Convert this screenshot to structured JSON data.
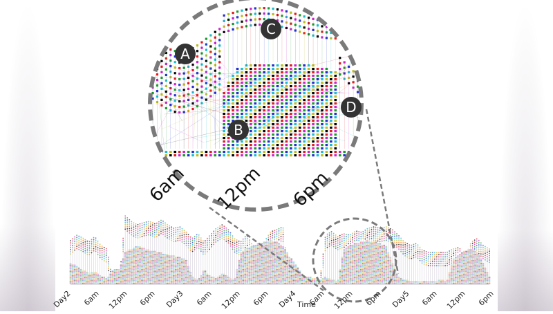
{
  "chart_data": {
    "type": "scatter",
    "subtype": "stacked-marker timeline with magnified inset",
    "title": "",
    "xlabel": "Time",
    "ylabel": "",
    "x_ticks": [
      "Day2",
      "6am",
      "12pm",
      "6pm",
      "Day3",
      "6am",
      "12pm",
      "6pm",
      "Day4",
      "6am",
      "12pm",
      "6pm",
      "Day5",
      "6am",
      "12pm",
      "6pm"
    ],
    "grid": false,
    "legend": null,
    "series_description": "Many colored marker series (one per entity) stacked vertically per time step, connected by thin colored lines",
    "marker_colors": [
      "#000000",
      "#e41a1c",
      "#cc33cc",
      "#2ca02c",
      "#1f3fcf",
      "#17becf",
      "#bcbd22",
      "#ff7f0e"
    ],
    "profile": {
      "description": "Approximate top envelope of the marker stacks, normalized 0-1 (1 = tallest), sampled evenly across Day2 -> 6pm Day5",
      "upper_band": [
        0.62,
        0.7,
        0.66,
        0.6,
        0.68,
        0.55,
        0.5,
        0.0,
        0.0,
        0.98,
        0.9,
        0.85,
        0.88,
        0.9,
        0.86,
        0.92,
        0.85,
        0.8,
        0.82,
        0.75,
        0.65,
        0.72,
        0.6,
        0.7,
        0.8,
        0.85,
        0.78,
        0.65,
        0.6,
        0.7,
        0.55,
        0.5,
        0.62,
        0.75,
        0.78,
        0.82,
        0.0,
        0.0,
        0.0,
        0.0,
        0.0,
        0.0,
        0.7,
        0.75,
        0.68,
        0.72,
        0.7,
        0.76,
        0.74,
        0.8,
        0.82,
        0.8,
        0.82,
        0.78,
        0.7,
        0.6,
        0.55,
        0.58,
        0.48,
        0.45,
        0.45,
        0.45,
        0.45,
        0.5,
        0.52,
        0.4,
        0.6,
        0.65,
        0.55,
        0.5
      ],
      "lower_block": [
        0.3,
        0.25,
        0.2,
        0.15,
        0.18,
        0.1,
        0.08,
        0.2,
        0.2,
        0.45,
        0.5,
        0.55,
        0.52,
        0.48,
        0.46,
        0.44,
        0.42,
        0.4,
        0.38,
        0.35,
        0.1,
        0.05,
        0.2,
        0.1,
        0.08,
        0.15,
        0.1,
        0.05,
        0.45,
        0.5,
        0.55,
        0.58,
        0.6,
        0.62,
        0.6,
        0.55,
        0.4,
        0.3,
        0.15,
        0.1,
        0.08,
        0.05,
        0.1,
        0.05,
        0.04,
        0.5,
        0.55,
        0.58,
        0.6,
        0.62,
        0.6,
        0.58,
        0.55,
        0.3,
        0.1,
        0.05,
        0.04,
        0.04,
        0.04,
        0.04,
        0.04,
        0.05,
        0.04,
        0.35,
        0.42,
        0.48,
        0.5,
        0.45,
        0.3,
        0.1
      ]
    },
    "highlight": {
      "region": "Day4 6am - Day4 6pm",
      "magnified_x_ticks": [
        "6am",
        "12pm",
        "6pm"
      ],
      "callouts": [
        {
          "label": "A",
          "meaning": "morning upper band"
        },
        {
          "label": "B",
          "meaning": "midday dense stacked block"
        },
        {
          "label": "C",
          "meaning": "top band peak"
        },
        {
          "label": "D",
          "meaning": "evening drop-off"
        }
      ]
    }
  },
  "axis": {
    "title": "Time",
    "ticks": [
      "Day2",
      "6am",
      "12pm",
      "6pm",
      "Day3",
      "6am",
      "12pm",
      "6pm",
      "Day4",
      "6am",
      "12pm",
      "6pm",
      "Day5",
      "6am",
      "12pm",
      "6pm"
    ]
  },
  "magnifier": {
    "ticks": [
      "6am",
      "12pm",
      "6pm"
    ],
    "callouts": [
      "A",
      "B",
      "C",
      "D"
    ]
  },
  "colors": {
    "callout_bg": "#333333",
    "dashed_ring": "#7a7a7a",
    "side_panel": "#dcd7de"
  }
}
